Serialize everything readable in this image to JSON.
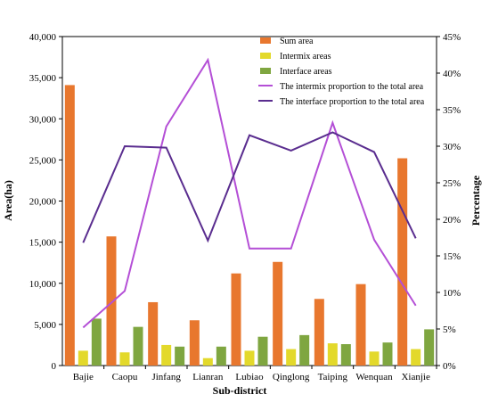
{
  "chart_data": {
    "type": "bar",
    "categories": [
      "Bajie",
      "Caopu",
      "Jinfang",
      "Lianran",
      "Lubiao",
      "Qinglong",
      "Taiping",
      "Wenquan",
      "Xianjie"
    ],
    "xlabel": "Sub-district",
    "ylabel": "Area(ha)",
    "y2label": "Percentage",
    "ylim": [
      0,
      40000
    ],
    "y2lim": [
      0,
      45
    ],
    "yticks": [
      "0",
      "5,000",
      "10,000",
      "15,000",
      "20,000",
      "25,000",
      "30,000",
      "35,000",
      "40,000"
    ],
    "y2ticks": [
      "0%",
      "5%",
      "10%",
      "15%",
      "20%",
      "25%",
      "30%",
      "35%",
      "40%",
      "45%"
    ],
    "legend_position": "top-right",
    "grid": false,
    "series": [
      {
        "name": "Sum area",
        "kind": "bar",
        "axis": "left",
        "color": "#E8772E",
        "values": [
          34100,
          15700,
          7700,
          5500,
          11200,
          12600,
          8100,
          9900,
          25200
        ]
      },
      {
        "name": "Intermix areas",
        "kind": "bar",
        "axis": "left",
        "color": "#E3D92B",
        "values": [
          1800,
          1600,
          2500,
          900,
          1800,
          2000,
          2700,
          1700,
          2000
        ]
      },
      {
        "name": "Interface areas",
        "kind": "bar",
        "axis": "left",
        "color": "#7FA640",
        "values": [
          5700,
          4700,
          2300,
          2300,
          3500,
          3700,
          2600,
          2800,
          4400
        ]
      },
      {
        "name": "The intermix proportion  to the total area",
        "kind": "line",
        "axis": "right",
        "color": "#B44FD6",
        "values": [
          5.2,
          10.2,
          32.7,
          41.8,
          16.0,
          16.0,
          33.2,
          17.2,
          8.2
        ]
      },
      {
        "name": "The interface proportion  to the total area",
        "kind": "line",
        "axis": "right",
        "color": "#5A2D8F",
        "values": [
          16.8,
          30.0,
          29.8,
          17.1,
          31.5,
          29.4,
          31.9,
          29.2,
          17.4
        ]
      }
    ]
  }
}
